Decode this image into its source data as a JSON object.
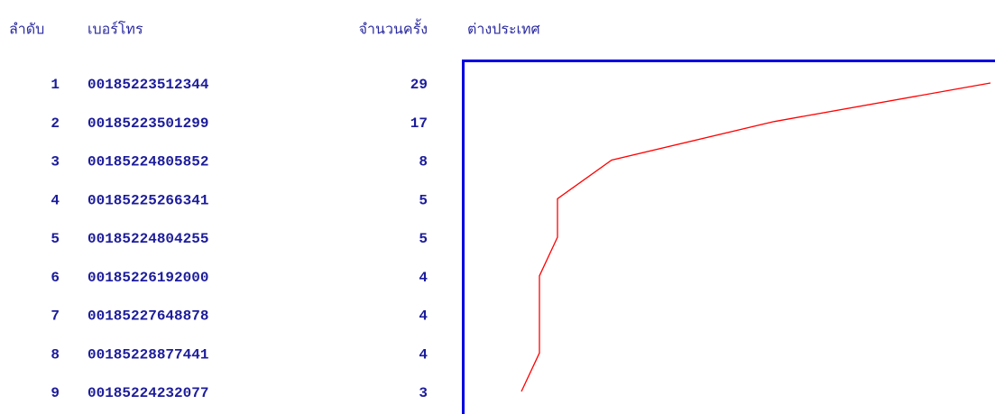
{
  "table": {
    "headers": [
      "ลำดับ",
      "เบอร์โทร",
      "จำนวนครั้ง",
      "ต่างประเทศ"
    ],
    "rows": [
      {
        "rank": 1,
        "phone": "00185223512344",
        "count": 29
      },
      {
        "rank": 2,
        "phone": "00185223501299",
        "count": 17
      },
      {
        "rank": 3,
        "phone": "00185224805852",
        "count": 8
      },
      {
        "rank": 4,
        "phone": "00185225266341",
        "count": 5
      },
      {
        "rank": 5,
        "phone": "00185224804255",
        "count": 5
      },
      {
        "rank": 6,
        "phone": "00185226192000",
        "count": 4
      },
      {
        "rank": 7,
        "phone": "00185227648878",
        "count": 4
      },
      {
        "rank": 8,
        "phone": "00185228877441",
        "count": 4
      },
      {
        "rank": 9,
        "phone": "00185224232077",
        "count": 3
      }
    ],
    "line_color": "#ff0000",
    "frame_color": "#0000e0"
  }
}
